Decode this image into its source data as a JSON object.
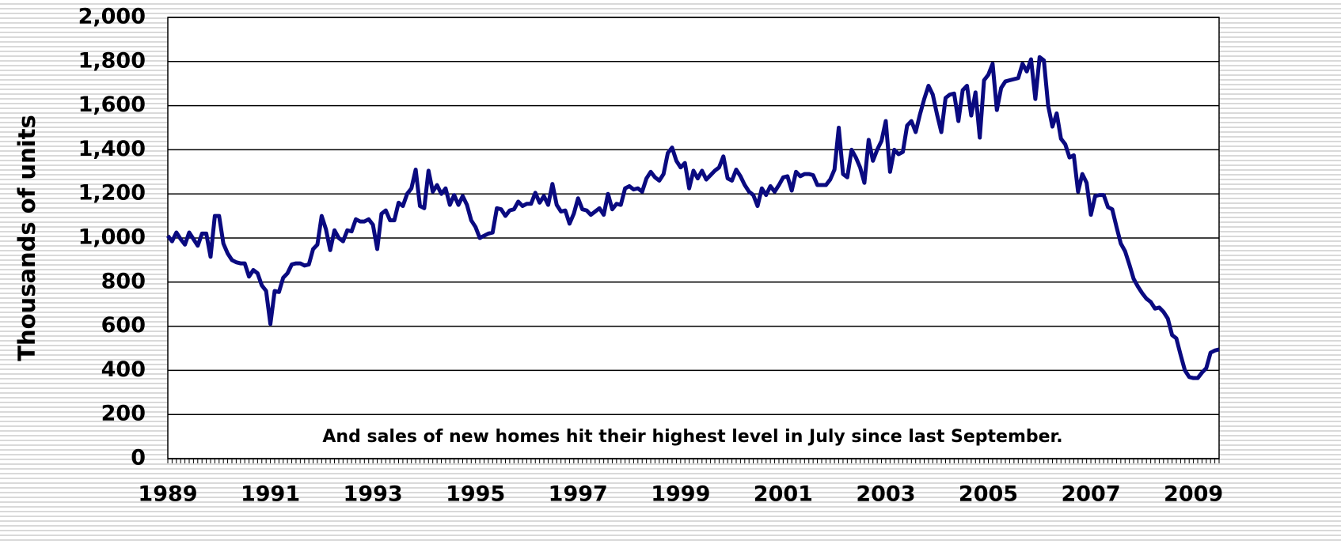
{
  "chart_data": {
    "type": "line",
    "ylabel": "Thousands of units",
    "annotation": "And sales of new homes hit their highest level in July since last September.",
    "color": "#0a0a80",
    "grid": true,
    "ylim": [
      0,
      2000
    ],
    "yticks": [
      0,
      200,
      400,
      600,
      800,
      {
        "value": 1000,
        "label": "1,000"
      },
      {
        "value": 1200,
        "label": "1,200"
      },
      {
        "value": 1400,
        "label": "1,400"
      },
      {
        "value": 1600,
        "label": "1,600"
      },
      {
        "value": 1800,
        "label": "1,800"
      },
      {
        "value": 2000,
        "label": "2,000"
      }
    ],
    "categories": [
      "1989",
      null,
      null,
      null,
      null,
      null,
      null,
      null,
      null,
      null,
      null,
      null,
      null,
      null,
      null,
      null,
      null,
      null,
      null,
      null,
      null,
      null,
      null,
      null,
      "1991",
      null,
      null,
      null,
      null,
      null,
      null,
      null,
      null,
      null,
      null,
      null,
      null,
      null,
      null,
      null,
      null,
      null,
      null,
      null,
      null,
      null,
      null,
      null,
      "1993",
      null,
      null,
      null,
      null,
      null,
      null,
      null,
      null,
      null,
      null,
      null,
      null,
      null,
      null,
      null,
      null,
      null,
      null,
      null,
      null,
      null,
      null,
      null,
      "1995",
      null,
      null,
      null,
      null,
      null,
      null,
      null,
      null,
      null,
      null,
      null,
      null,
      null,
      null,
      null,
      null,
      null,
      null,
      null,
      null,
      null,
      null,
      null,
      "1997",
      null,
      null,
      null,
      null,
      null,
      null,
      null,
      null,
      null,
      null,
      null,
      null,
      null,
      null,
      null,
      null,
      null,
      null,
      null,
      null,
      null,
      null,
      null,
      "1999",
      null,
      null,
      null,
      null,
      null,
      null,
      null,
      null,
      null,
      null,
      null,
      null,
      null,
      null,
      null,
      null,
      null,
      null,
      null,
      null,
      null,
      null,
      null,
      "2001",
      null,
      null,
      null,
      null,
      null,
      null,
      null,
      null,
      null,
      null,
      null,
      null,
      null,
      null,
      null,
      null,
      null,
      null,
      null,
      null,
      null,
      null,
      null,
      "2003",
      null,
      null,
      null,
      null,
      null,
      null,
      null,
      null,
      null,
      null,
      null,
      null,
      null,
      null,
      null,
      null,
      null,
      null,
      null,
      null,
      null,
      null,
      null,
      "2005",
      null,
      null,
      null,
      null,
      null,
      null,
      null,
      null,
      null,
      null,
      null,
      null,
      null,
      null,
      null,
      null,
      null,
      null,
      null,
      null,
      null,
      null,
      null,
      "2007",
      null,
      null,
      null,
      null,
      null,
      null,
      null,
      null,
      null,
      null,
      null,
      null,
      null,
      null,
      null,
      null,
      null,
      null,
      null,
      null,
      null,
      null,
      null,
      "2009",
      null,
      null,
      null,
      null,
      null,
      null
    ],
    "values": [
      1010,
      985,
      1025,
      995,
      970,
      1025,
      995,
      965,
      1020,
      1020,
      915,
      1100,
      1100,
      975,
      930,
      900,
      890,
      885,
      885,
      825,
      855,
      840,
      785,
      760,
      610,
      760,
      755,
      820,
      840,
      880,
      885,
      885,
      875,
      880,
      950,
      970,
      1100,
      1040,
      945,
      1035,
      1000,
      985,
      1035,
      1030,
      1085,
      1075,
      1075,
      1085,
      1060,
      950,
      1110,
      1125,
      1080,
      1080,
      1160,
      1145,
      1200,
      1225,
      1310,
      1145,
      1135,
      1305,
      1210,
      1240,
      1200,
      1225,
      1150,
      1195,
      1150,
      1190,
      1150,
      1080,
      1050,
      1000,
      1010,
      1020,
      1025,
      1135,
      1130,
      1100,
      1125,
      1130,
      1165,
      1145,
      1155,
      1155,
      1205,
      1160,
      1190,
      1150,
      1245,
      1150,
      1120,
      1125,
      1065,
      1110,
      1180,
      1130,
      1125,
      1105,
      1120,
      1135,
      1105,
      1200,
      1130,
      1155,
      1150,
      1225,
      1235,
      1220,
      1225,
      1210,
      1270,
      1300,
      1275,
      1260,
      1290,
      1385,
      1410,
      1350,
      1320,
      1340,
      1225,
      1305,
      1270,
      1305,
      1265,
      1285,
      1305,
      1320,
      1370,
      1270,
      1260,
      1310,
      1280,
      1240,
      1210,
      1195,
      1145,
      1225,
      1195,
      1235,
      1210,
      1240,
      1275,
      1280,
      1215,
      1300,
      1280,
      1290,
      1290,
      1285,
      1240,
      1240,
      1240,
      1265,
      1310,
      1500,
      1290,
      1275,
      1400,
      1365,
      1320,
      1250,
      1445,
      1350,
      1400,
      1440,
      1530,
      1300,
      1400,
      1380,
      1390,
      1510,
      1530,
      1480,
      1560,
      1630,
      1690,
      1650,
      1560,
      1480,
      1635,
      1650,
      1655,
      1530,
      1670,
      1690,
      1555,
      1660,
      1455,
      1715,
      1740,
      1790,
      1580,
      1680,
      1710,
      1715,
      1720,
      1725,
      1790,
      1755,
      1810,
      1630,
      1820,
      1805,
      1600,
      1505,
      1565,
      1450,
      1425,
      1365,
      1375,
      1210,
      1290,
      1250,
      1105,
      1190,
      1195,
      1195,
      1140,
      1130,
      1050,
      975,
      940,
      880,
      815,
      780,
      750,
      725,
      710,
      680,
      685,
      665,
      635,
      560,
      545,
      470,
      400,
      370,
      365,
      365,
      390,
      410,
      480,
      490,
      495
    ]
  }
}
